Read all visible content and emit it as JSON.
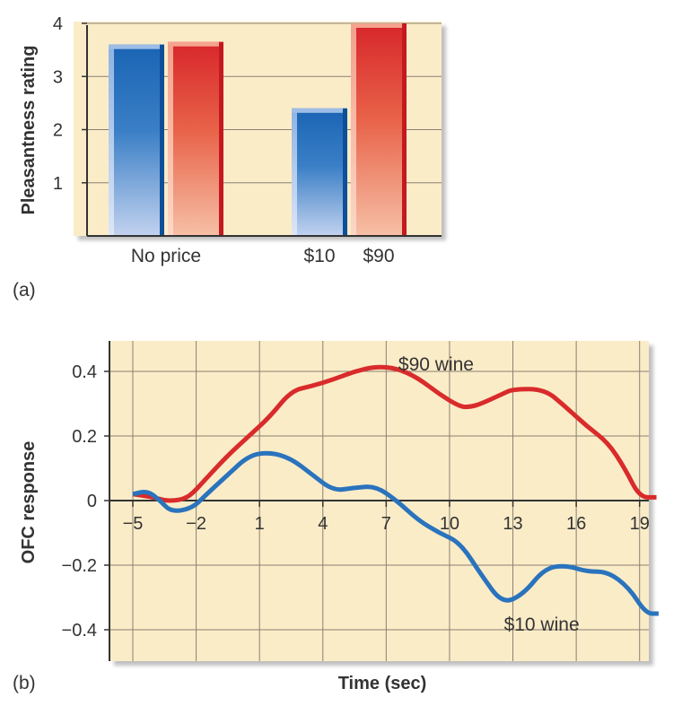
{
  "chart_data": [
    {
      "panel": "(a)",
      "type": "bar",
      "ylabel": "Pleasantness rating",
      "ylim": [
        0,
        4
      ],
      "yticks": [
        1,
        2,
        3,
        4
      ],
      "grid": true,
      "groups": [
        {
          "label": "No price",
          "bars": [
            {
              "value": 3.6,
              "color": "blue"
            },
            {
              "value": 3.65,
              "color": "red"
            }
          ]
        },
        {
          "label": "",
          "bars": [
            {
              "value": 2.4,
              "color": "blue",
              "label": "$10"
            },
            {
              "value": 4.0,
              "color": "red",
              "label": "$90"
            }
          ]
        }
      ]
    },
    {
      "panel": "(b)",
      "type": "line",
      "xlabel": "Time (sec)",
      "ylabel": "OFC response",
      "xlim": [
        -6,
        20
      ],
      "ylim": [
        -0.5,
        0.5
      ],
      "xticks": [
        -5,
        -2,
        1,
        4,
        7,
        10,
        13,
        16,
        19
      ],
      "yticks": [
        -0.4,
        -0.2,
        0,
        0.2,
        0.4
      ],
      "ytick_labels": [
        "−0.4",
        "−0.2",
        "0",
        "0.2",
        "0.4"
      ],
      "xtick_labels": [
        "−5",
        "−2",
        "1",
        "4",
        "7",
        "10",
        "13",
        "16",
        "19"
      ],
      "grid": true,
      "series": [
        {
          "name": "$90 wine",
          "color": "#d92b2b",
          "points": [
            [
              -5,
              0.02
            ],
            [
              -4.5,
              0.015
            ],
            [
              -4,
              0.01
            ],
            [
              -3.5,
              0.0
            ],
            [
              -3,
              0.0
            ],
            [
              -2.6,
              0.005
            ],
            [
              -2.2,
              0.02
            ],
            [
              -1.5,
              0.07
            ],
            [
              -0.5,
              0.14
            ],
            [
              0.5,
              0.2
            ],
            [
              1.5,
              0.26
            ],
            [
              2.5,
              0.34
            ],
            [
              3.5,
              0.355
            ],
            [
              4.5,
              0.375
            ],
            [
              5.5,
              0.4
            ],
            [
              6.5,
              0.415
            ],
            [
              7.5,
              0.41
            ],
            [
              8.5,
              0.38
            ],
            [
              9.5,
              0.33
            ],
            [
              10.5,
              0.29
            ],
            [
              11,
              0.29
            ],
            [
              11.5,
              0.3
            ],
            [
              12.5,
              0.33
            ],
            [
              13,
              0.345
            ],
            [
              14.5,
              0.345
            ],
            [
              15.5,
              0.29
            ],
            [
              16.5,
              0.23
            ],
            [
              17.5,
              0.18
            ],
            [
              18.3,
              0.1
            ],
            [
              19,
              0.01
            ],
            [
              19.8,
              0.01
            ]
          ]
        },
        {
          "name": "$10 wine",
          "color": "#2a73bd",
          "points": [
            [
              -5,
              0.02
            ],
            [
              -4.3,
              0.03
            ],
            [
              -3.7,
              0.0
            ],
            [
              -3.2,
              -0.035
            ],
            [
              -2.2,
              -0.025
            ],
            [
              -1.5,
              0.02
            ],
            [
              -0.5,
              0.08
            ],
            [
              0.5,
              0.14
            ],
            [
              1.5,
              0.15
            ],
            [
              2.5,
              0.13
            ],
            [
              3.5,
              0.08
            ],
            [
              4.5,
              0.03
            ],
            [
              5.5,
              0.04
            ],
            [
              6.5,
              0.045
            ],
            [
              7.5,
              0.0
            ],
            [
              8.5,
              -0.06
            ],
            [
              9.5,
              -0.1
            ],
            [
              10.5,
              -0.13
            ],
            [
              11.5,
              -0.23
            ],
            [
              12.5,
              -0.32
            ],
            [
              13.5,
              -0.29
            ],
            [
              14.5,
              -0.21
            ],
            [
              15.5,
              -0.2
            ],
            [
              16.5,
              -0.22
            ],
            [
              17.5,
              -0.22
            ],
            [
              18.5,
              -0.27
            ],
            [
              19.3,
              -0.35
            ],
            [
              19.9,
              -0.35
            ]
          ]
        }
      ],
      "annotations": [
        {
          "text": "$90 wine",
          "x": 10,
          "y": 0.45
        },
        {
          "text": "$10 wine",
          "x": 15,
          "y": -0.355
        }
      ]
    }
  ]
}
